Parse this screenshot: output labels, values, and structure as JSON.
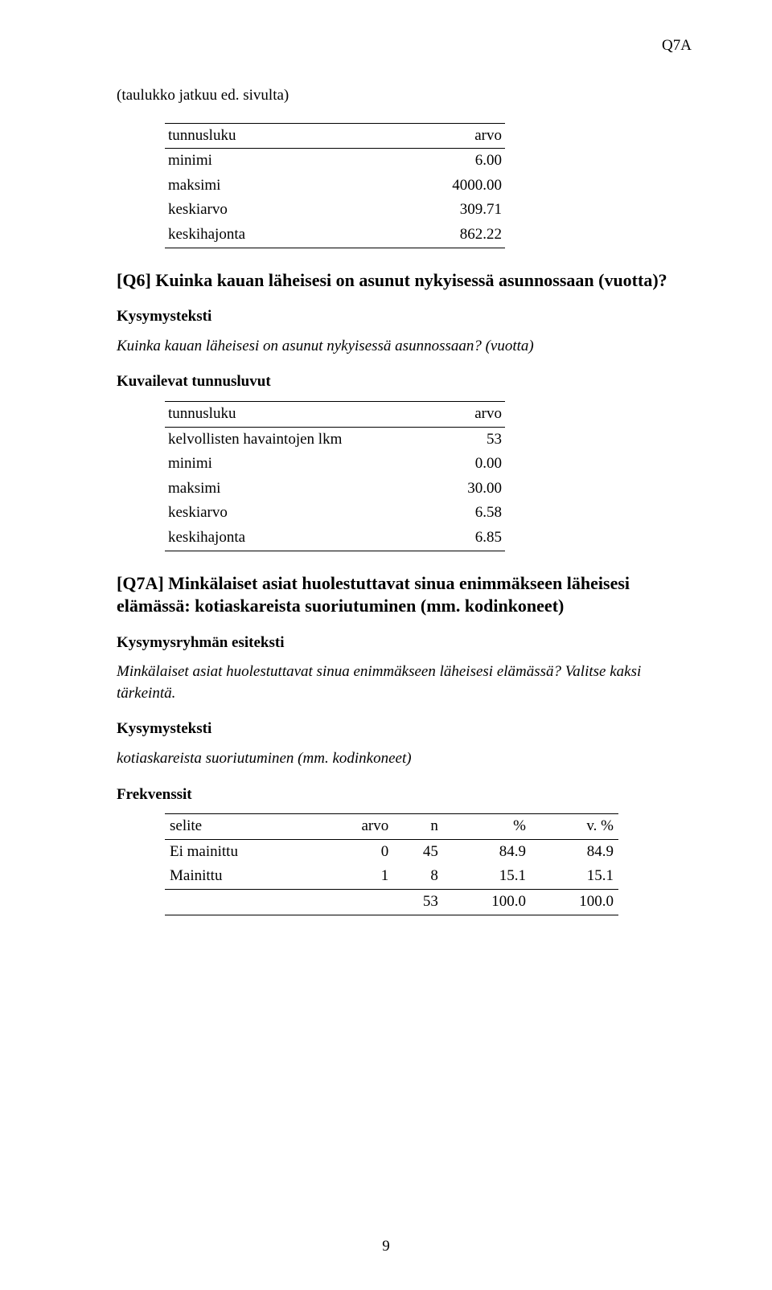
{
  "header_code": "Q7A",
  "continuation_note": "(taulukko jatkuu ed. sivulta)",
  "table1": {
    "header": {
      "col1": "tunnusluku",
      "col2": "arvo"
    },
    "rows": [
      {
        "label": "minimi",
        "value": "6.00"
      },
      {
        "label": "maksimi",
        "value": "4000.00"
      },
      {
        "label": "keskiarvo",
        "value": "309.71"
      },
      {
        "label": "keskihajonta",
        "value": "862.22"
      }
    ]
  },
  "q6": {
    "title": "[Q6] Kuinka kauan läheisesi on asunut nykyisessä asunnossaan (vuotta)?",
    "label_kysymysteksti": "Kysymysteksti",
    "question_text": "Kuinka kauan läheisesi on asunut nykyisessä asunnossaan? (vuotta)",
    "label_kuvailevat": "Kuvailevat tunnusluvut",
    "table": {
      "header": {
        "col1": "tunnusluku",
        "col2": "arvo"
      },
      "rows": [
        {
          "label": "kelvollisten havaintojen lkm",
          "value": "53"
        },
        {
          "label": "minimi",
          "value": "0.00"
        },
        {
          "label": "maksimi",
          "value": "30.00"
        },
        {
          "label": "keskiarvo",
          "value": "6.58"
        },
        {
          "label": "keskihajonta",
          "value": "6.85"
        }
      ]
    }
  },
  "q7a": {
    "title": "[Q7A] Minkälaiset asiat huolestuttavat sinua enimmäkseen läheisesi elämässä: kotiaskareista suoriutuminen (mm. kodinkoneet)",
    "label_esiteksti": "Kysymysryhmän esiteksti",
    "esiteksti": "Minkälaiset asiat huolestuttavat sinua enimmäkseen läheisesi elämässä? Valitse kaksi tärkeintä.",
    "label_kysymysteksti": "Kysymysteksti",
    "question_text": "kotiaskareista suoriutuminen (mm. kodinkoneet)",
    "label_frekvenssit": "Frekvenssit",
    "freq": {
      "header": {
        "selite": "selite",
        "arvo": "arvo",
        "n": "n",
        "pct": "%",
        "vpct": "v. %"
      },
      "rows": [
        {
          "selite": "Ei mainittu",
          "arvo": "0",
          "n": "45",
          "pct": "84.9",
          "vpct": "84.9"
        },
        {
          "selite": "Mainittu",
          "arvo": "1",
          "n": "8",
          "pct": "15.1",
          "vpct": "15.1"
        }
      ],
      "total": {
        "n": "53",
        "pct": "100.0",
        "vpct": "100.0"
      }
    }
  },
  "page_number": "9"
}
